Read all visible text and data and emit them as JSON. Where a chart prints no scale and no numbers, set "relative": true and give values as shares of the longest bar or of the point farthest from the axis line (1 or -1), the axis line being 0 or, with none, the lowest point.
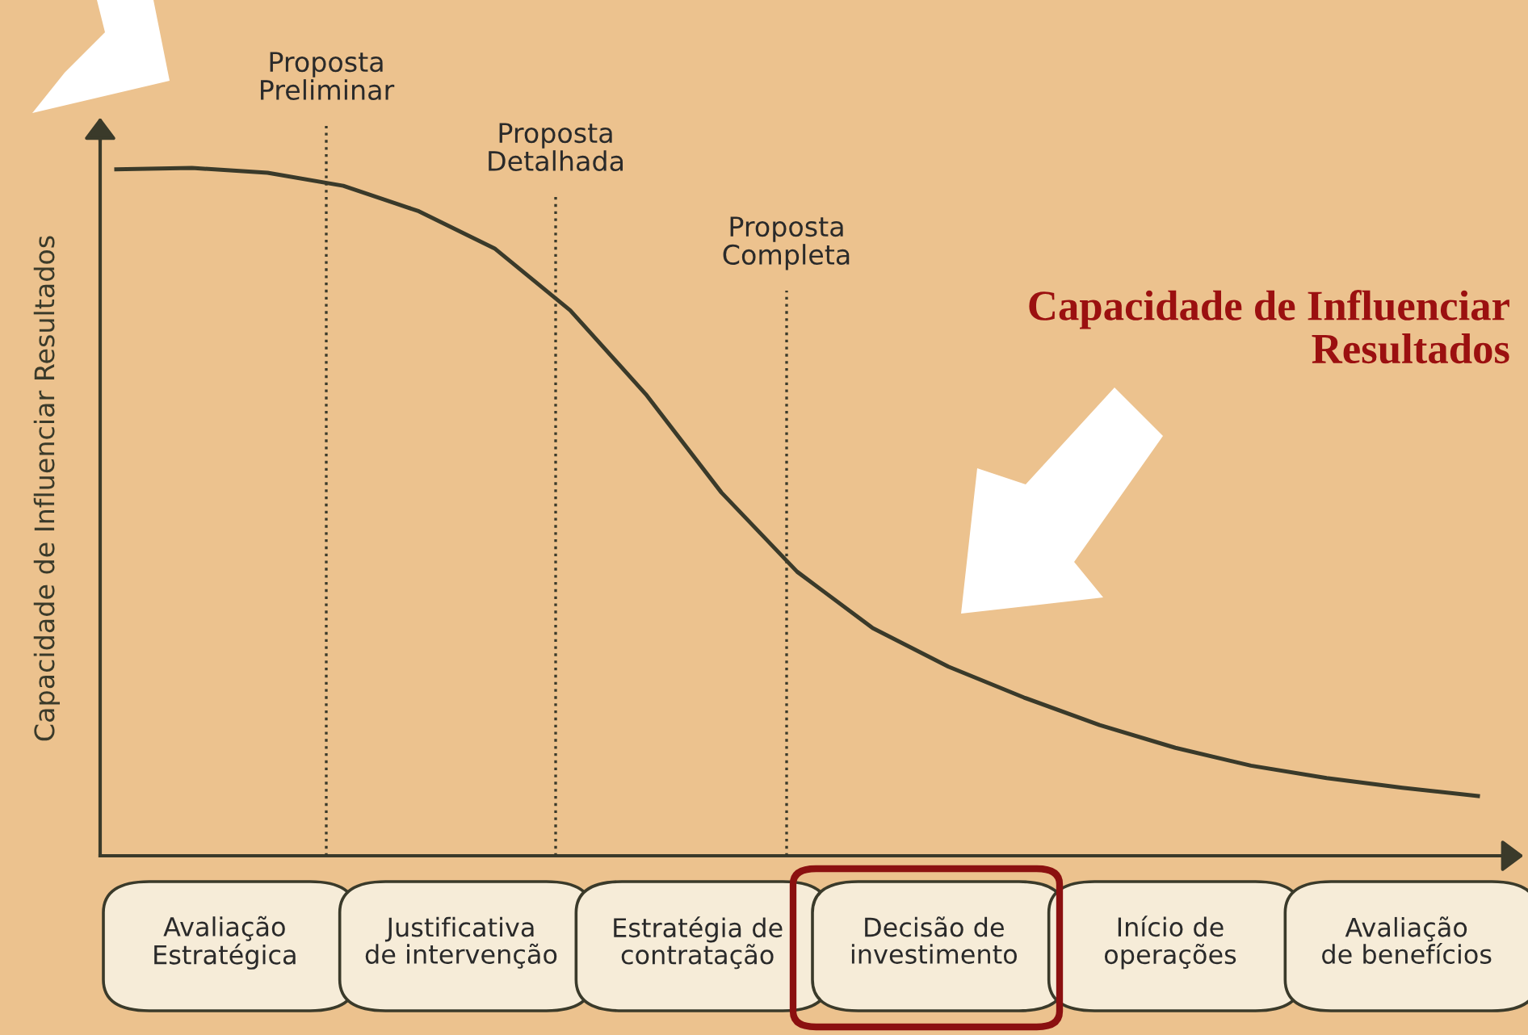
{
  "chart_data": {
    "type": "line",
    "relative": true,
    "ylabel": "Capacidade de Influenciar Resultados",
    "categories": [
      null,
      null,
      null,
      null,
      null,
      null,
      null,
      null,
      null,
      null,
      null,
      null,
      null,
      null,
      null,
      null,
      null,
      null,
      null
    ],
    "series": [
      {
        "color": "#3a3a2a",
        "values": [
          0.998,
          1.0,
          0.993,
          0.974,
          0.937,
          0.883,
          0.793,
          0.671,
          0.528,
          0.413,
          0.331,
          0.275,
          0.23,
          0.19,
          0.157,
          0.131,
          0.113,
          0.099,
          0.087
        ]
      }
    ],
    "annotations": [
      "Proposta\nPreliminar",
      "Proposta\nDetalhada",
      "Proposta\nCompleta",
      "Avaliação\nEstratégica",
      "Justificativa\nde intervenção",
      "Estratégia de\ncontratação",
      "Decisão de\ninvestimento",
      "Início de\noperações",
      "Avaliação\nde benefícios",
      "Capacidade de Influenciar\nResultados"
    ],
    "grid": false,
    "legend": false,
    "marker": "none",
    "line_style": "solid"
  }
}
